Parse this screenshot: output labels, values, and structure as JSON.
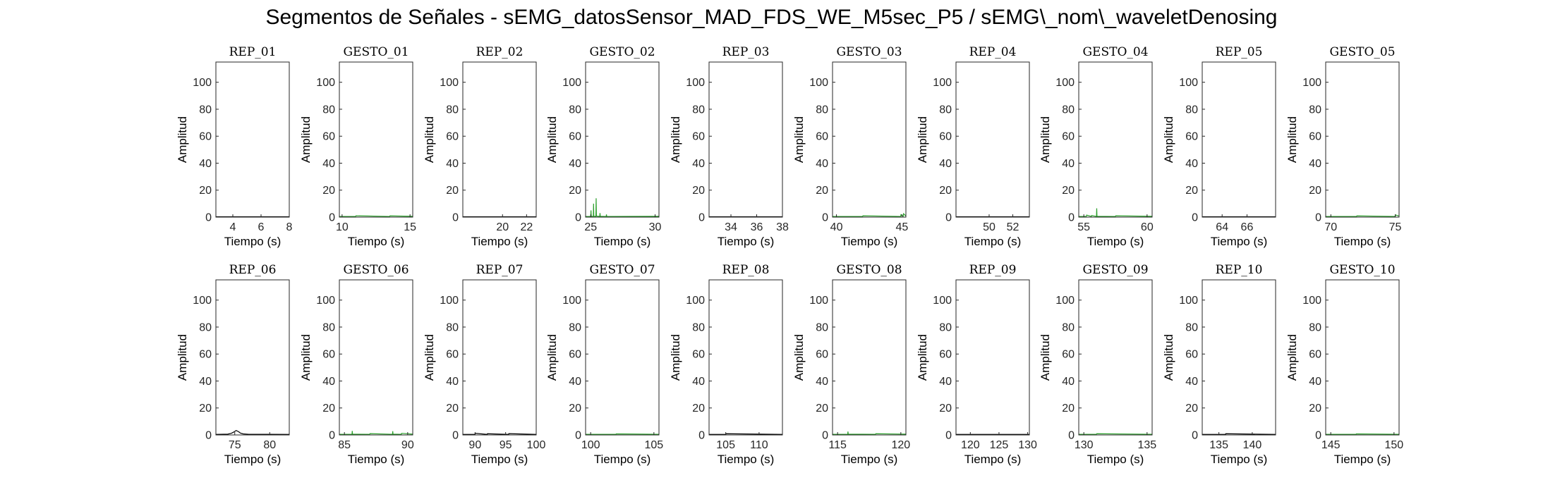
{
  "figure": {
    "title": "Segmentos de Señales - sEMG_datosSensor_MAD_FDS_WE_M5sec_P5 / sEMG\\_nom\\_waveletDenosing"
  },
  "colors": {
    "rep": "#000000",
    "gesto": "#2ca02c",
    "axis": "#262626"
  },
  "chart_data": [
    {
      "type": "line",
      "title": "REP_01",
      "xlabel": "Tiempo (s)",
      "ylabel": "Amplitud",
      "xlim": [
        2.8,
        8
      ],
      "ylim": [
        0,
        115
      ],
      "xticks": [
        4,
        6,
        8
      ],
      "yticks": [
        0,
        20,
        40,
        60,
        80,
        100
      ],
      "series": [
        {
          "color": "#000000",
          "x": [
            2.8,
            8
          ],
          "y": [
            0.3,
            0.3
          ]
        }
      ]
    },
    {
      "type": "line",
      "title": "GESTO_01",
      "xlabel": "Tiempo (s)",
      "ylabel": "Amplitud",
      "xlim": [
        9.8,
        15.2
      ],
      "ylim": [
        0,
        115
      ],
      "xticks": [
        10,
        15
      ],
      "yticks": [
        0,
        20,
        40,
        60,
        80,
        100
      ],
      "series": [
        {
          "color": "#2ca02c",
          "x": [
            9.8,
            11.0,
            11.02,
            13.5,
            13.52,
            15.2
          ],
          "y": [
            0.5,
            0.5,
            1.0,
            0.5,
            0.9,
            0.6
          ]
        }
      ]
    },
    {
      "type": "line",
      "title": "REP_02",
      "xlabel": "Tiempo (s)",
      "ylabel": "Amplitud",
      "xlim": [
        16.7,
        22.8
      ],
      "ylim": [
        0,
        115
      ],
      "xticks": [
        20,
        22
      ],
      "yticks": [
        0,
        20,
        40,
        60,
        80,
        100
      ],
      "series": [
        {
          "color": "#000000",
          "x": [
            16.7,
            22.8
          ],
          "y": [
            0.3,
            0.3
          ]
        }
      ]
    },
    {
      "type": "line",
      "title": "GESTO_02",
      "xlabel": "Tiempo (s)",
      "ylabel": "Amplitud",
      "xlim": [
        24.6,
        30.3
      ],
      "ylim": [
        0,
        115
      ],
      "xticks": [
        25,
        30
      ],
      "yticks": [
        0,
        20,
        40,
        60,
        80,
        100
      ],
      "series": [
        {
          "color": "#2ca02c",
          "x": [
            24.6,
            25.0,
            25.02,
            25.04,
            25.2,
            25.22,
            25.24,
            25.4,
            25.42,
            25.44,
            25.7,
            25.72,
            25.74,
            26.2,
            26.22,
            26.24,
            30.3
          ],
          "y": [
            0.5,
            0.5,
            5.0,
            0.6,
            0.5,
            10.0,
            0.7,
            0.5,
            14.0,
            0.8,
            0.5,
            3.0,
            0.6,
            0.5,
            2.0,
            0.5,
            0.6
          ]
        }
      ]
    },
    {
      "type": "line",
      "title": "REP_03",
      "xlabel": "Tiempo (s)",
      "ylabel": "Amplitud",
      "xlim": [
        32.3,
        38
      ],
      "ylim": [
        0,
        115
      ],
      "xticks": [
        34,
        36,
        38
      ],
      "yticks": [
        0,
        20,
        40,
        60,
        80,
        100
      ],
      "series": [
        {
          "color": "#000000",
          "x": [
            32.3,
            38
          ],
          "y": [
            0.3,
            0.3
          ]
        }
      ]
    },
    {
      "type": "line",
      "title": "GESTO_03",
      "xlabel": "Tiempo (s)",
      "ylabel": "Amplitud",
      "xlim": [
        39.7,
        45.3
      ],
      "ylim": [
        0,
        115
      ],
      "xticks": [
        40,
        45
      ],
      "yticks": [
        0,
        20,
        40,
        60,
        80,
        100
      ],
      "series": [
        {
          "color": "#2ca02c",
          "x": [
            39.7,
            42.0,
            42.02,
            44.9,
            44.92,
            45.1,
            45.12,
            45.3
          ],
          "y": [
            0.5,
            0.5,
            1.0,
            0.5,
            1.8,
            0.6,
            2.5,
            0.8
          ]
        }
      ]
    },
    {
      "type": "line",
      "title": "REP_04",
      "xlabel": "Tiempo (s)",
      "ylabel": "Amplitud",
      "xlim": [
        47.2,
        53.4
      ],
      "ylim": [
        0,
        115
      ],
      "xticks": [
        50,
        52
      ],
      "yticks": [
        0,
        20,
        40,
        60,
        80,
        100
      ],
      "series": [
        {
          "color": "#000000",
          "x": [
            47.2,
            53.4
          ],
          "y": [
            0.3,
            0.3
          ]
        }
      ]
    },
    {
      "type": "line",
      "title": "GESTO_04",
      "xlabel": "Tiempo (s)",
      "ylabel": "Amplitud",
      "xlim": [
        54.6,
        60.4
      ],
      "ylim": [
        0,
        115
      ],
      "xticks": [
        55,
        60
      ],
      "yticks": [
        0,
        20,
        40,
        60,
        80,
        100
      ],
      "series": [
        {
          "color": "#2ca02c",
          "x": [
            54.6,
            55.2,
            55.22,
            55.6,
            55.62,
            56.0,
            56.02,
            56.04,
            57.5,
            57.52,
            60.4
          ],
          "y": [
            0.5,
            0.5,
            1.5,
            0.5,
            1.2,
            0.5,
            6.5,
            0.6,
            0.5,
            1.0,
            0.6
          ]
        }
      ]
    },
    {
      "type": "line",
      "title": "REP_05",
      "xlabel": "Tiempo (s)",
      "ylabel": "Amplitud",
      "xlim": [
        62.4,
        68.3
      ],
      "ylim": [
        0,
        115
      ],
      "xticks": [
        64,
        66
      ],
      "yticks": [
        0,
        20,
        40,
        60,
        80,
        100
      ],
      "series": [
        {
          "color": "#000000",
          "x": [
            62.4,
            68.3
          ],
          "y": [
            0.3,
            0.3
          ]
        }
      ]
    },
    {
      "type": "line",
      "title": "GESTO_05",
      "xlabel": "Tiempo (s)",
      "ylabel": "Amplitud",
      "xlim": [
        69.6,
        75.3
      ],
      "ylim": [
        0,
        115
      ],
      "xticks": [
        70,
        75
      ],
      "yticks": [
        0,
        20,
        40,
        60,
        80,
        100
      ],
      "series": [
        {
          "color": "#2ca02c",
          "x": [
            69.6,
            72.0,
            72.02,
            75.0,
            75.02,
            75.3
          ],
          "y": [
            0.5,
            0.5,
            0.9,
            0.5,
            1.6,
            0.8
          ]
        }
      ]
    },
    {
      "type": "line",
      "title": "REP_06",
      "xlabel": "Tiempo (s)",
      "ylabel": "Amplitud",
      "xlim": [
        72.3,
        82.8
      ],
      "ylim": [
        0,
        115
      ],
      "xticks": [
        75,
        80
      ],
      "yticks": [
        0,
        20,
        40,
        60,
        80,
        100
      ],
      "series": [
        {
          "color": "#000000",
          "x": [
            72.3,
            74.0,
            74.5,
            74.8,
            75.0,
            75.2,
            75.4,
            75.6,
            75.8,
            76.2,
            77.0,
            82.8
          ],
          "y": [
            0.4,
            0.6,
            1.2,
            2.0,
            2.6,
            3.3,
            2.8,
            2.2,
            1.4,
            0.8,
            0.5,
            0.4
          ]
        }
      ]
    },
    {
      "type": "line",
      "title": "GESTO_06",
      "xlabel": "Tiempo (s)",
      "ylabel": "Amplitud",
      "xlim": [
        84.6,
        90.4
      ],
      "ylim": [
        0,
        115
      ],
      "xticks": [
        85,
        90
      ],
      "yticks": [
        0,
        20,
        40,
        60,
        80,
        100
      ],
      "series": [
        {
          "color": "#2ca02c",
          "x": [
            84.6,
            85.6,
            85.62,
            85.64,
            87.0,
            87.02,
            88.8,
            88.82,
            88.84,
            89.5,
            89.52,
            90.4
          ],
          "y": [
            0.5,
            0.5,
            3.0,
            0.6,
            0.5,
            1.0,
            0.5,
            2.8,
            0.6,
            0.5,
            1.2,
            0.6
          ]
        }
      ]
    },
    {
      "type": "line",
      "title": "REP_07",
      "xlabel": "Tiempo (s)",
      "ylabel": "Amplitud",
      "xlim": [
        88,
        100
      ],
      "ylim": [
        0,
        115
      ],
      "xticks": [
        90,
        95,
        100
      ],
      "yticks": [
        0,
        20,
        40,
        60,
        80,
        100
      ],
      "series": [
        {
          "color": "#000000",
          "x": [
            88,
            90.0,
            90.02,
            92.0,
            92.02,
            95.5,
            95.52,
            100
          ],
          "y": [
            0.4,
            0.4,
            1.2,
            0.4,
            0.9,
            0.4,
            1.0,
            0.4
          ]
        }
      ]
    },
    {
      "type": "line",
      "title": "GESTO_07",
      "xlabel": "Tiempo (s)",
      "ylabel": "Amplitud",
      "xlim": [
        99.6,
        105.4
      ],
      "ylim": [
        0,
        115
      ],
      "xticks": [
        100,
        105
      ],
      "yticks": [
        0,
        20,
        40,
        60,
        80,
        100
      ],
      "series": [
        {
          "color": "#2ca02c",
          "x": [
            99.6,
            102.0,
            102.02,
            105.4
          ],
          "y": [
            0.5,
            0.5,
            0.8,
            0.5
          ]
        }
      ]
    },
    {
      "type": "line",
      "title": "REP_08",
      "xlabel": "Tiempo (s)",
      "ylabel": "Amplitud",
      "xlim": [
        102.5,
        113.5
      ],
      "ylim": [
        0,
        115
      ],
      "xticks": [
        105,
        110
      ],
      "yticks": [
        0,
        20,
        40,
        60,
        80,
        100
      ],
      "series": [
        {
          "color": "#000000",
          "x": [
            102.5,
            105.0,
            105.02,
            113.5
          ],
          "y": [
            0.4,
            0.4,
            0.9,
            0.4
          ]
        }
      ]
    },
    {
      "type": "line",
      "title": "GESTO_08",
      "xlabel": "Tiempo (s)",
      "ylabel": "Amplitud",
      "xlim": [
        114.6,
        120.4
      ],
      "ylim": [
        0,
        115
      ],
      "xticks": [
        115,
        120
      ],
      "yticks": [
        0,
        20,
        40,
        60,
        80,
        100
      ],
      "series": [
        {
          "color": "#2ca02c",
          "x": [
            114.6,
            115.8,
            115.82,
            115.84,
            118.0,
            118.02,
            120.4
          ],
          "y": [
            0.5,
            0.5,
            2.5,
            0.6,
            0.5,
            0.9,
            0.6
          ]
        }
      ]
    },
    {
      "type": "line",
      "title": "REP_09",
      "xlabel": "Tiempo (s)",
      "ylabel": "Amplitud",
      "xlim": [
        117.5,
        130.3
      ],
      "ylim": [
        0,
        115
      ],
      "xticks": [
        120,
        125,
        130
      ],
      "yticks": [
        0,
        20,
        40,
        60,
        80,
        100
      ],
      "series": [
        {
          "color": "#000000",
          "x": [
            117.5,
            130.3
          ],
          "y": [
            0.4,
            0.4
          ]
        }
      ]
    },
    {
      "type": "line",
      "title": "GESTO_09",
      "xlabel": "Tiempo (s)",
      "ylabel": "Amplitud",
      "xlim": [
        129.6,
        135.4
      ],
      "ylim": [
        0,
        115
      ],
      "xticks": [
        130,
        135
      ],
      "yticks": [
        0,
        20,
        40,
        60,
        80,
        100
      ],
      "series": [
        {
          "color": "#2ca02c",
          "x": [
            129.6,
            131.0,
            131.02,
            135.4
          ],
          "y": [
            0.5,
            0.5,
            0.9,
            0.5
          ]
        }
      ]
    },
    {
      "type": "line",
      "title": "REP_10",
      "xlabel": "Tiempo (s)",
      "ylabel": "Amplitud",
      "xlim": [
        132.5,
        143.5
      ],
      "ylim": [
        0,
        115
      ],
      "xticks": [
        135,
        140
      ],
      "yticks": [
        0,
        20,
        40,
        60,
        80,
        100
      ],
      "series": [
        {
          "color": "#000000",
          "x": [
            132.5,
            136.0,
            136.02,
            143.5
          ],
          "y": [
            0.4,
            0.4,
            0.9,
            0.4
          ]
        }
      ]
    },
    {
      "type": "line",
      "title": "GESTO_10",
      "xlabel": "Tiempo (s)",
      "ylabel": "Amplitud",
      "xlim": [
        144.6,
        150.4
      ],
      "ylim": [
        0,
        115
      ],
      "xticks": [
        145,
        150
      ],
      "yticks": [
        0,
        20,
        40,
        60,
        80,
        100
      ],
      "series": [
        {
          "color": "#2ca02c",
          "x": [
            144.6,
            147.0,
            147.02,
            150.4
          ],
          "y": [
            0.5,
            0.5,
            0.8,
            0.5
          ]
        }
      ]
    }
  ]
}
